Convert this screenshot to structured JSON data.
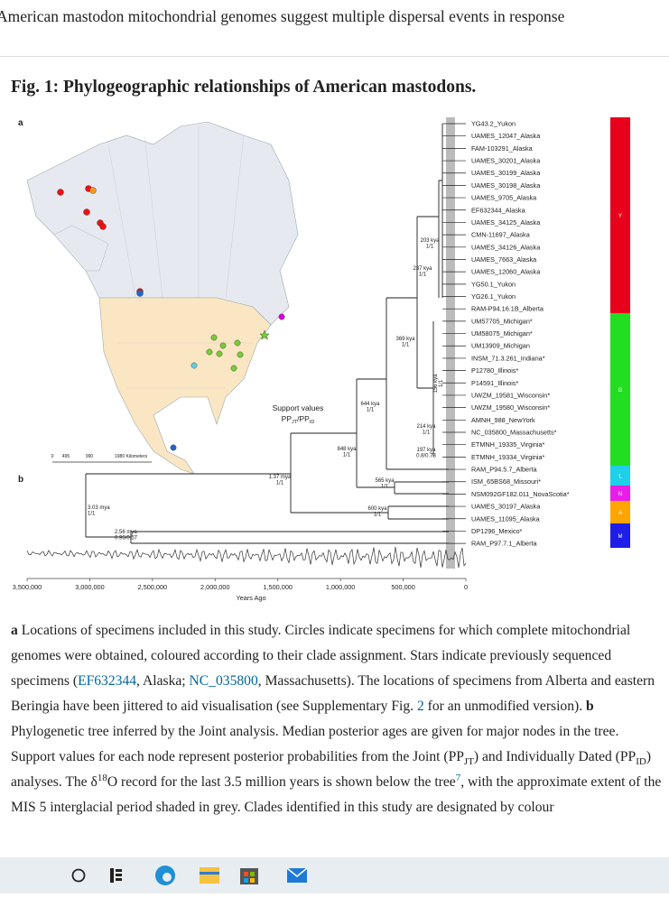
{
  "header": {
    "title": "American mastodon mitochondrial genomes suggest multiple dispersal events in response"
  },
  "figure": {
    "title": "Fig. 1: Phylogeographic relationships of American mastodons.",
    "panel_labels": [
      "a",
      "b"
    ],
    "map_scale": [
      "0",
      "495",
      "990",
      "1980 Kilometers"
    ],
    "tips": [
      "YG43.2_Yukon",
      "UAMES_12047_Alaska",
      "FAM-103291_Alaska",
      "UAMES_30201_Alaska",
      "UAMES_30199_Alaska",
      "UAMES_30198_Alaska",
      "UAMES_9705_Alaska",
      "EF632344_Alaska",
      "UAMES_34125_Alaska",
      "CMN-11697_Alaska",
      "UAMES_34126_Alaska",
      "UAMES_7663_Alaska",
      "UAMES_12060_Alaska",
      "YG50.1_Yukon",
      "YG26.1_Yukon",
      "RAM-P94.16.1B_Alberta",
      "UM57705_Michigan*",
      "UM58075_Michigan*",
      "UM13909_Michigan",
      "INSM_71.3.261_Indiana*",
      "P12780_Illinois*",
      "P14591_Illinois*",
      "UWZM_19581_Wisconsin*",
      "UWZM_19580_Wisconsin*",
      "AMNH_988_NewYork",
      "NC_035800_Massachusetts*",
      "ETMNH_19335_Virginia*",
      "ETMNH_19334_Virginia*",
      "RAM_P94.5.7_Alberta",
      "ISM_65BS68_Missouri*",
      "NSM092GF182.011_NovaScotia*",
      "UAMES_30197_Alaska",
      "UAMES_11095_Alaska",
      "DP1296_Mexico*",
      "RAM_P97.7.1_Alberta"
    ],
    "clades": [
      "Y",
      "G",
      "L",
      "N",
      "A",
      "M"
    ],
    "nodes": [
      {
        "age": "203 kya",
        "support": "1/1"
      },
      {
        "age": "237 kya",
        "support": "1/1"
      },
      {
        "age": "369 kya",
        "support": "1/1"
      },
      {
        "age": "156 kya",
        "support": "1/1"
      },
      {
        "age": "644 kya",
        "support": "1/1"
      },
      {
        "age": "214 kya",
        "support": "1/1"
      },
      {
        "age": "197 kya",
        "support": "0.8/0.73"
      },
      {
        "age": "848 kya",
        "support": "1/1"
      },
      {
        "age": "565 kya",
        "support": "1/1"
      },
      {
        "age": "1.37 mya",
        "support": "1/1"
      },
      {
        "age": "600 kya",
        "support": "1/1"
      },
      {
        "age": "3.03 mya",
        "support": "1/1"
      },
      {
        "age": "2.56 mya",
        "support": "0.96/0.57"
      }
    ],
    "support_legend": {
      "title": "Support values",
      "parts": [
        "PP",
        "JT",
        "/PP",
        "ID"
      ]
    },
    "x_axis": {
      "ticks": [
        "3,500,000",
        "3,000,000",
        "2,500,000",
        "2,000,000",
        "1,500,000",
        "1,000,000",
        "500,000",
        "0"
      ],
      "label": "Years Ago"
    }
  },
  "caption": {
    "parts": [
      "a",
      " Locations of specimens included in this study. Circles indicate specimens for which complete mitochondrial genomes were obtained, coloured according to their clade assignment. Stars indicate previously sequenced specimens (",
      "EF632344",
      ", Alaska; ",
      "NC_035800",
      ", Massachusetts). The locations of specimens from Alberta and eastern Beringia have been jittered to aid visualisation (see Supplementary Fig. ",
      "2",
      " for an unmodified version). ",
      "b",
      " Phylogenetic tree inferred by the Joint analysis. Median posterior ages are given for major nodes in the tree. Support values for each node represent posterior probabilities from the Joint (PP",
      "JT",
      ") and Individually Dated (PP",
      "ID",
      ") analyses. The δ",
      "18",
      "O record for the last 3.5 million years is shown below the tree",
      "7",
      ", with the approximate extent of the MIS 5 interglacial period shaded in grey. Clades identified in this study are designated by colour"
    ]
  }
}
